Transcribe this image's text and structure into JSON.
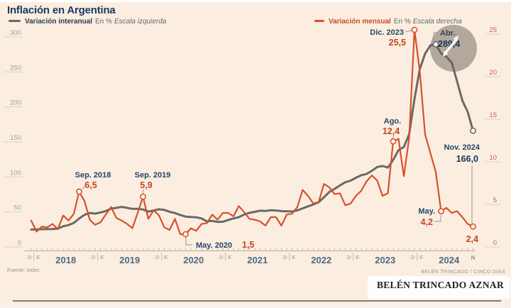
{
  "title": "Inflación en Argentina",
  "legend": {
    "left": {
      "label": "Variación interanual",
      "unit": "En %",
      "scale": "Escala izquierda"
    },
    "right": {
      "label": "Variación mensual",
      "unit": "En %",
      "scale": "Escala derecha"
    }
  },
  "source": "Fuente: Indec",
  "credit_small": "BELÉN TRINCADO / CINCO DÍAS",
  "credit": "BELÉN TRINCADO AZNAR",
  "colors": {
    "background": "#fbeee1",
    "title_navy": "#1b3a60",
    "interanual_line": "#6b6966",
    "mensual_line": "#d9502a",
    "annotation_red": "#cc4023",
    "annotation_navy": "#16355d",
    "axis_left_labels": "#98a0ab",
    "axis_right_labels": "#c0604a"
  },
  "chart_data": {
    "type": "line",
    "title": "Inflación en Argentina",
    "x_start": "Dic 2017",
    "x_end": "Nov 2024",
    "x_axis": {
      "years": [
        2018,
        2019,
        2020,
        2021,
        2022,
        2023,
        2024
      ],
      "december_label": "D",
      "january_label": "E",
      "end_label": "N",
      "months_total": 84
    },
    "y_left": {
      "label": "Variación interanual En %",
      "ticks": [
        0,
        50,
        100,
        150,
        200,
        250,
        300
      ],
      "range": [
        0,
        300
      ]
    },
    "y_right": {
      "label": "Variación mensual En %",
      "ticks": [
        0,
        5,
        10,
        15,
        20,
        25
      ],
      "range": [
        0,
        25
      ]
    },
    "series": [
      {
        "key": "interanual",
        "name": "Variación interanual",
        "axis": "left",
        "color": "#6b6966",
        "stroke_width": 3,
        "values": [
          24.8,
          25.0,
          25.4,
          25.4,
          25.5,
          26.3,
          29.5,
          31.2,
          34.4,
          40.5,
          45.9,
          48.5,
          47.6,
          49.3,
          51.3,
          54.7,
          55.8,
          57.3,
          55.8,
          54.4,
          54.5,
          53.5,
          50.5,
          52.1,
          53.8,
          52.9,
          50.3,
          48.4,
          45.6,
          43.4,
          42.8,
          42.4,
          40.7,
          36.6,
          37.2,
          35.8,
          36.1,
          38.5,
          40.7,
          42.6,
          46.3,
          48.8,
          50.2,
          51.8,
          51.4,
          52.5,
          52.1,
          51.2,
          50.9,
          50.7,
          52.3,
          55.1,
          58.0,
          60.7,
          64.0,
          71.0,
          78.5,
          83.0,
          88.0,
          92.4,
          94.8,
          98.8,
          102.5,
          104.3,
          108.8,
          114.2,
          115.6,
          113.4,
          124.4,
          138.3,
          142.7,
          160.9,
          211.4,
          254.2,
          276.2,
          287.9,
          289.4,
          276.4,
          271.5,
          263.4,
          236.7,
          209.0,
          193.0,
          166.0
        ]
      },
      {
        "key": "mensual",
        "name": "Variación mensual",
        "axis": "right",
        "color": "#d9502a",
        "stroke_width": 2.2,
        "values": [
          3.1,
          1.8,
          2.4,
          2.3,
          2.7,
          2.1,
          3.7,
          3.1,
          3.9,
          6.5,
          5.4,
          3.2,
          2.6,
          2.9,
          3.8,
          4.7,
          3.4,
          3.1,
          2.7,
          2.2,
          4.0,
          5.9,
          3.3,
          4.3,
          3.7,
          2.3,
          2.0,
          3.3,
          1.5,
          1.5,
          2.2,
          1.9,
          2.7,
          2.8,
          3.8,
          3.2,
          4.0,
          4.0,
          3.6,
          4.8,
          4.1,
          3.3,
          3.2,
          3.0,
          2.5,
          3.5,
          3.5,
          2.5,
          3.8,
          3.9,
          4.7,
          6.7,
          6.0,
          5.1,
          5.3,
          7.4,
          7.0,
          6.2,
          6.3,
          4.9,
          5.1,
          6.0,
          6.6,
          7.7,
          8.4,
          7.8,
          6.0,
          6.3,
          12.4,
          12.7,
          8.3,
          12.8,
          25.5,
          20.6,
          13.2,
          11.0,
          8.8,
          4.2,
          4.6,
          4.0,
          4.2,
          3.5,
          2.7,
          2.4
        ]
      }
    ],
    "annotations": [
      {
        "id": "sep-2018",
        "series": "mensual",
        "i": 9,
        "date_label": "Sep. 2018",
        "value_label": "6,5",
        "value_color": "red",
        "date_pos": [
          131,
          250,
          "middle"
        ],
        "value_pos": [
          128,
          265,
          "middle"
        ],
        "leader": [
          [
            116,
            266
          ],
          [
            121,
            261
          ]
        ]
      },
      {
        "id": "sep-2019",
        "series": "mensual",
        "i": 21,
        "date_label": "Sep. 2019",
        "value_label": "5,9",
        "value_color": "red",
        "date_pos": [
          215,
          250,
          "middle"
        ],
        "value_pos": [
          206,
          265,
          "middle"
        ],
        "leader": [
          [
            202,
            273
          ],
          [
            202,
            267
          ]
        ]
      },
      {
        "id": "may-2020",
        "series": "mensual",
        "i": 29,
        "date_label": "May. 2020",
        "value_label": "1,5",
        "value_color": "red",
        "date_pos": [
          276,
          349,
          "start"
        ],
        "value_pos": [
          341,
          349,
          "start"
        ],
        "leader": [
          [
            262,
            334
          ],
          [
            262,
            345
          ],
          [
            271,
            345
          ]
        ]
      },
      {
        "id": "ago-2023",
        "series": "mensual",
        "i": 68,
        "date_label": "Ago.",
        "value_label": "12,4",
        "value_color": "red",
        "date_pos": [
          553,
          174,
          "middle"
        ],
        "value_pos": [
          551,
          189,
          "middle"
        ],
        "leader": [
          [
            554,
            195
          ],
          [
            554,
            191
          ]
        ]
      },
      {
        "id": "dic-2023",
        "series": "mensual",
        "i": 72,
        "date_label": "Dic. 2023",
        "value_label": "25,5",
        "value_color": "red",
        "date_pos": [
          569,
          49,
          "end"
        ],
        "value_pos": [
          572,
          64,
          "end"
        ],
        "leader": [
          [
            571,
            45
          ],
          [
            580,
            43
          ]
        ]
      },
      {
        "id": "abr-2024",
        "series": "interanual",
        "i": 76,
        "date_label": "Abr.",
        "value_label": "289,4",
        "value_color": "navy",
        "date_pos": [
          620,
          50,
          "start"
        ],
        "value_pos": [
          617,
          66,
          "start"
        ],
        "leader": [
          [
            617,
            46
          ],
          [
            611,
            46
          ],
          [
            611,
            56
          ]
        ]
      },
      {
        "id": "nov-2024-interanual",
        "series": "interanual",
        "i": 83,
        "date_label": "Nov. 2024",
        "value_label": "166,0",
        "value_color": "navy",
        "date_pos": [
          676,
          211,
          "end"
        ],
        "value_pos": [
          674,
          228,
          "end"
        ],
        "leader": [
          [
            665,
            233
          ],
          [
            665,
            317
          ]
        ]
      },
      {
        "id": "may-2024",
        "series": "mensual",
        "i": 77,
        "date_label": "May.",
        "value_label": "4,2",
        "value_color": "red",
        "date_pos": [
          613,
          301,
          "end"
        ],
        "value_pos": [
          610,
          317,
          "end"
        ],
        "leader": [
          [
            612,
            312
          ],
          [
            621,
            312
          ],
          [
            621,
            303
          ]
        ]
      },
      {
        "id": "nov-2024-mensual",
        "series": "mensual",
        "i": 83,
        "date_label": "",
        "value_label": "2,4",
        "value_color": "red",
        "date_pos": null,
        "value_pos": [
          674,
          341,
          "end"
        ],
        "leader": null
      }
    ]
  }
}
